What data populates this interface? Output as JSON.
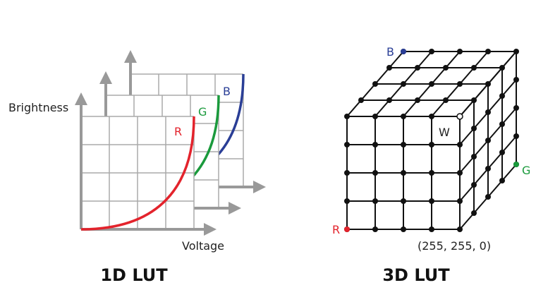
{
  "lut_1d": {
    "y_axis_label": "Brightness",
    "x_axis_label": "Voltage",
    "curve_labels": {
      "red": "R",
      "green": "G",
      "blue": "B"
    },
    "caption": "1D LUT"
  },
  "lut_3d": {
    "corner_labels": {
      "blue": "B",
      "white": "W",
      "green": "G",
      "red": "R"
    },
    "coordinate_label": "(255, 255, 0)",
    "caption": "3D LUT"
  }
}
